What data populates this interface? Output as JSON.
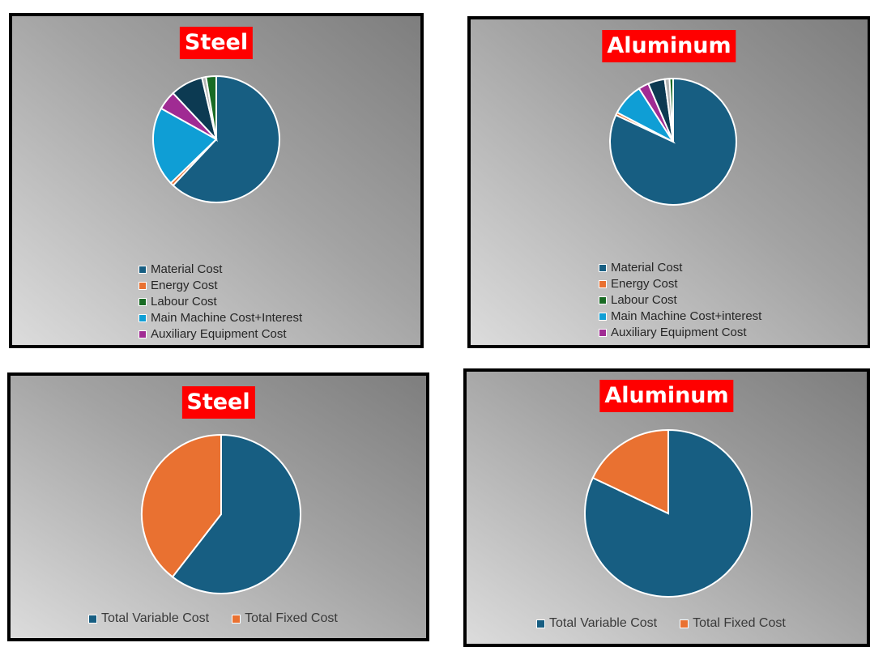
{
  "chart_data": [
    {
      "type": "pie",
      "title": "Steel",
      "categories": [
        "Material Cost",
        "Energy Cost",
        "Labour Cost",
        "Main Machine Cost+Interest",
        "Auxiliary Equipment Cost"
      ],
      "values": [
        59.5,
        0.8,
        2.5,
        19.5,
        4.7
      ],
      "legend": "bottom",
      "extra_unlabeled_slices": [
        8.0,
        1.0
      ]
    },
    {
      "type": "pie",
      "title": "Aluminum",
      "categories": [
        "Material Cost",
        "Energy Cost",
        "Labour Cost",
        "Main Machine Cost+interest",
        "Auxiliary Equipment Cost"
      ],
      "values": [
        80.3,
        0.7,
        0.9,
        8.1,
        2.6
      ],
      "legend": "bottom",
      "extra_unlabeled_slices": [
        4.2,
        1.2
      ]
    },
    {
      "type": "pie",
      "title": "Steel",
      "categories": [
        "Total Variable Cost",
        "Total Fixed Cost"
      ],
      "values": [
        60.5,
        39.5
      ],
      "legend": "bottom"
    },
    {
      "type": "pie",
      "title": "Aluminum",
      "categories": [
        "Total Variable Cost",
        "Total Fixed Cost"
      ],
      "values": [
        82,
        18
      ],
      "legend": "bottom"
    }
  ],
  "colors": {
    "material": "#175e82",
    "energy": "#e97131",
    "labour": "#196b24",
    "machine": "#0f9ed5",
    "auxiliary": "#a02b93",
    "extra1": "#0c3a52",
    "extra2": "#4e7a2a",
    "variable": "#175e82",
    "fixed": "#e97131",
    "title_bg": "#ff0000"
  }
}
